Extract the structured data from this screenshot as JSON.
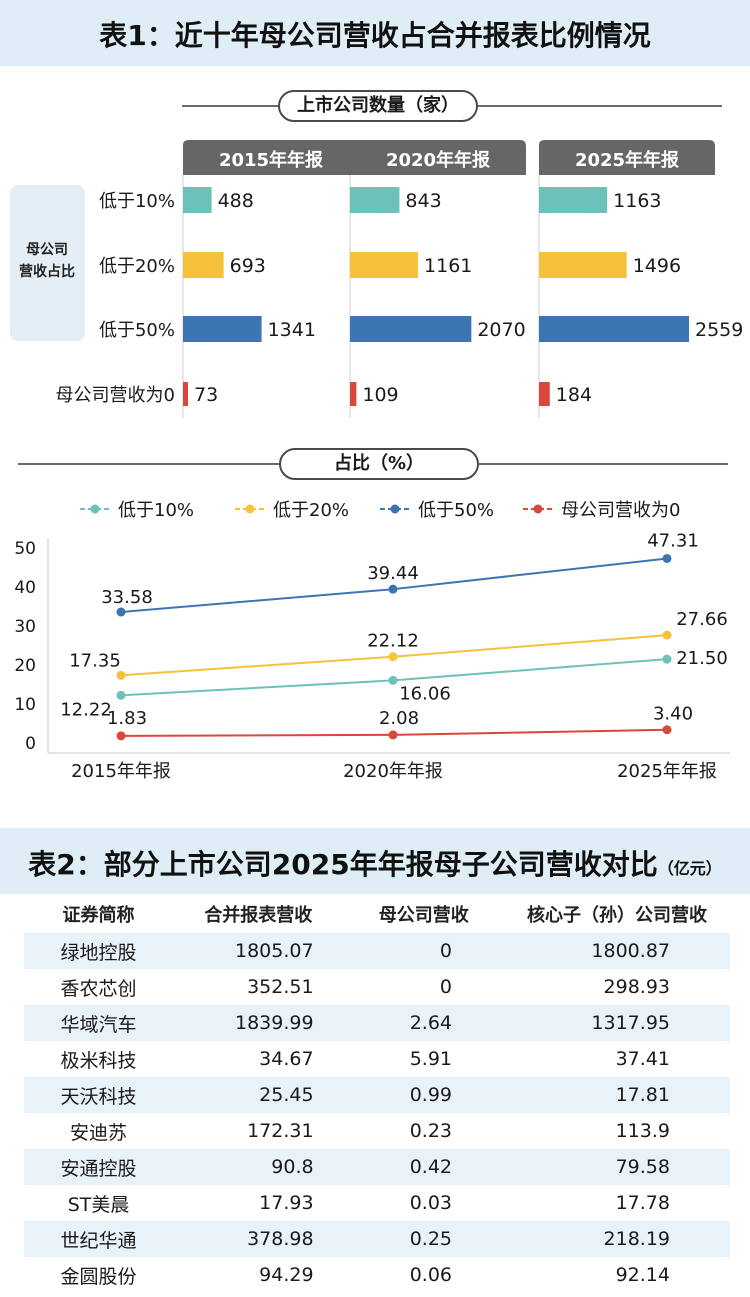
{
  "header1": {
    "title": "表1：近十年母公司营收占合并报表比例情况"
  },
  "section_count": {
    "label": "上市公司数量（家）"
  },
  "section_ratio": {
    "label": "占比（%）"
  },
  "side_label": {
    "line1": "母公司",
    "line2": "营收占比"
  },
  "colors": {
    "teal": "#6cc2b9",
    "yellow": "#f6c23b",
    "blue": "#3c76b2",
    "red": "#d9483b",
    "tab_gray": "#666666",
    "panel": "#e3eef6"
  },
  "chart_data": [
    {
      "type": "bar",
      "title": "上市公司数量（家）",
      "categories": [
        "低于10%",
        "低于20%",
        "低于50%",
        "母公司营收为0"
      ],
      "groups": [
        "2015年年报",
        "2020年年报",
        "2025年年报"
      ],
      "series": [
        {
          "name": "2015年年报",
          "values": [
            488,
            693,
            1341,
            73
          ]
        },
        {
          "name": "2020年年报",
          "values": [
            843,
            1161,
            2070,
            109
          ]
        },
        {
          "name": "2025年年报",
          "values": [
            1163,
            1496,
            2559,
            184
          ]
        }
      ]
    },
    {
      "type": "line",
      "title": "占比（%）",
      "x": [
        "2015年年报",
        "2020年年报",
        "2025年年报"
      ],
      "ylim": [
        0,
        50
      ],
      "yticks": [
        0,
        10,
        20,
        30,
        40,
        50
      ],
      "legend_position": "top",
      "series": [
        {
          "name": "低于10%",
          "values": [
            12.22,
            16.06,
            21.5
          ]
        },
        {
          "name": "低于20%",
          "values": [
            17.35,
            22.12,
            27.66
          ]
        },
        {
          "name": "低于50%",
          "values": [
            33.58,
            39.44,
            47.31
          ]
        },
        {
          "name": "母公司营收为0",
          "values": [
            1.83,
            2.08,
            3.4
          ]
        }
      ],
      "labels": [
        [
          "12.22",
          "16.06",
          "21.50"
        ],
        [
          "17.35",
          "22.12",
          "27.66"
        ],
        [
          "33.58",
          "39.44",
          "47.31"
        ],
        [
          "1.83",
          "2.08",
          "3.40"
        ]
      ]
    },
    {
      "type": "table",
      "title": "表2：部分上市公司2025年年报母子公司营收对比",
      "unit": "（亿元）",
      "columns": [
        "证券简称",
        "合并报表营收",
        "母公司营收",
        "核心子（孙）公司营收"
      ],
      "rows": [
        [
          "绿地控股",
          "1805.07",
          "0",
          "1800.87"
        ],
        [
          "香农芯创",
          "352.51",
          "0",
          "298.93"
        ],
        [
          "华域汽车",
          "1839.99",
          "2.64",
          "1317.95"
        ],
        [
          "极米科技",
          "34.67",
          "5.91",
          "37.41"
        ],
        [
          "天沃科技",
          "25.45",
          "0.99",
          "17.81"
        ],
        [
          "安迪苏",
          "172.31",
          "0.23",
          "113.9"
        ],
        [
          "安通控股",
          "90.8",
          "0.42",
          "79.58"
        ],
        [
          "ST美晨",
          "17.93",
          "0.03",
          "17.78"
        ],
        [
          "世纪华通",
          "378.98",
          "0.25",
          "218.19"
        ],
        [
          "金圆股份",
          "94.29",
          "0.06",
          "92.14"
        ]
      ]
    }
  ]
}
